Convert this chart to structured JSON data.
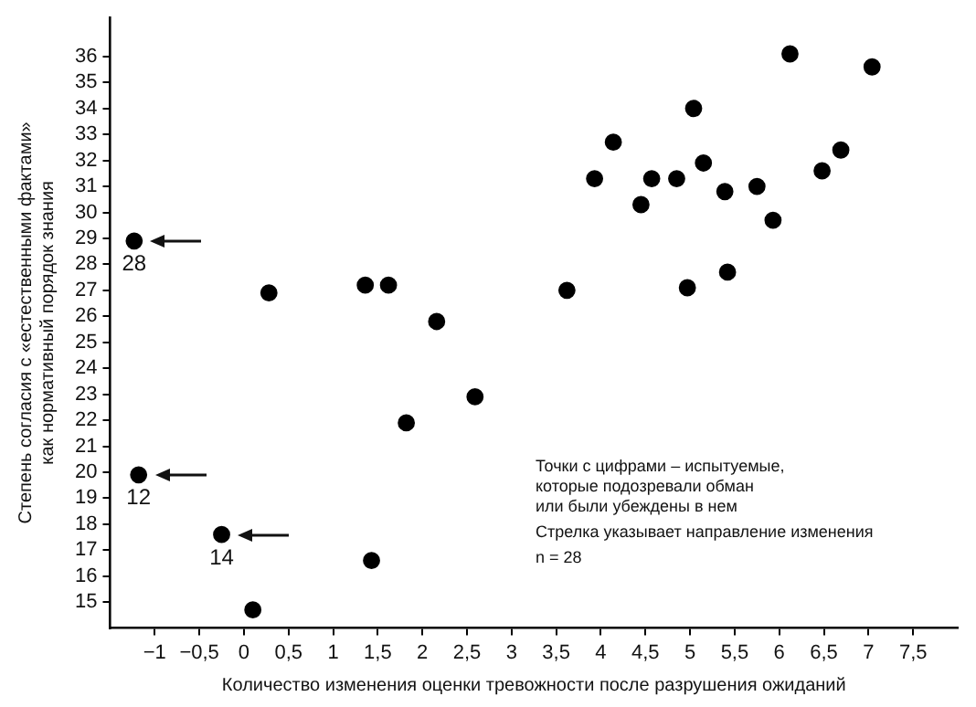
{
  "chart_data": {
    "type": "scatter",
    "xlabel": "Количество изменения оценки тревожности после разрушения ожиданий",
    "ylabel": "Степень согласия с «естественными фактами»\nкак нормативный порядок знания",
    "x": [
      -1.23,
      -1.18,
      -0.25,
      0.1,
      0.28,
      1.36,
      1.62,
      2.16,
      1.82,
      2.59,
      1.43,
      3.62,
      3.93,
      4.14,
      4.45,
      4.57,
      4.85,
      4.97,
      5.04,
      5.15,
      5.39,
      5.42,
      5.75,
      5.93,
      6.12,
      6.48,
      6.69,
      7.04
    ],
    "series": [
      {
        "color": "#000000",
        "values": [
          28.9,
          19.9,
          17.6,
          14.7,
          26.9,
          27.2,
          27.2,
          25.8,
          21.9,
          22.9,
          16.6,
          27.0,
          31.3,
          32.7,
          30.3,
          31.3,
          31.3,
          27.1,
          34.0,
          31.9,
          30.8,
          27.7,
          31.0,
          29.7,
          36.1,
          31.6,
          32.4,
          35.6
        ]
      }
    ],
    "xlim": [
      -1.5,
      8
    ],
    "xticks": [
      {
        "value": -1,
        "label": "−1"
      },
      {
        "value": -0.5,
        "label": "−0,5"
      },
      0,
      {
        "value": 0.5,
        "label": "0,5"
      },
      1,
      {
        "value": 1.5,
        "label": "1,5"
      },
      2,
      {
        "value": 2.5,
        "label": "2,5"
      },
      3,
      {
        "value": 3.5,
        "label": "3,5"
      },
      4,
      {
        "value": 4.5,
        "label": "4,5"
      },
      5,
      {
        "value": 5.5,
        "label": "5,5"
      },
      6,
      {
        "value": 6.5,
        "label": "6,5"
      },
      7,
      {
        "value": 7.5,
        "label": "7,5"
      }
    ],
    "ylim": [
      14,
      37.5
    ],
    "yticks": [
      15,
      16,
      17,
      18,
      19,
      20,
      21,
      22,
      23,
      24,
      25,
      26,
      27,
      28,
      29,
      30,
      31,
      32,
      33,
      34,
      35,
      36
    ],
    "marker": "circle",
    "legend": false,
    "annotations": [
      {
        "text": "28",
        "x": -1.23,
        "y": 28.9
      },
      {
        "text": "12",
        "x": -1.18,
        "y": 19.9
      },
      {
        "text": "14",
        "x": -0.25,
        "y": 17.6
      },
      "Точки с цифрами – испытуемые,\nкоторые подозревали обман\nили были убеждены в нем",
      "Стрелка указывает направление изменения",
      "n = 28"
    ]
  }
}
